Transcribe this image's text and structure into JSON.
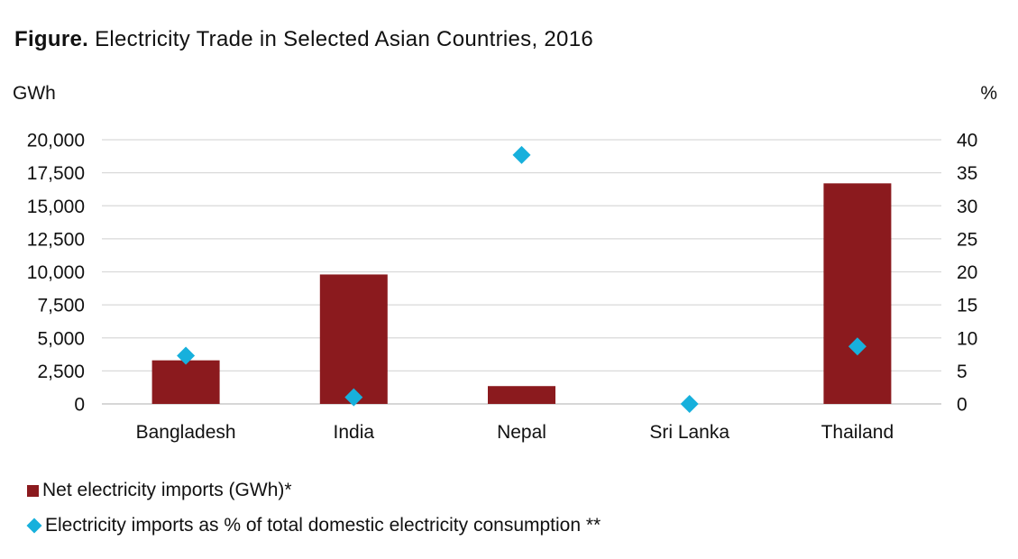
{
  "figure": {
    "prefix": "Figure.",
    "title": "Electricity Trade in Selected Asian Countries, 2016"
  },
  "colors": {
    "bar": "#8b1a1e",
    "marker": "#17b0dc",
    "grid": "#d9d9d9"
  },
  "chart_data": {
    "type": "bar",
    "categories": [
      "Bangladesh",
      "India",
      "Nepal",
      "Sri Lanka",
      "Thailand"
    ],
    "series": [
      {
        "name": "Net electricity imports (GWh)*",
        "type": "bar",
        "axis": "left",
        "values": [
          3300,
          9800,
          1350,
          0,
          16700
        ]
      },
      {
        "name": "Electricity imports as % of total domestic electricity consumption **",
        "type": "scatter",
        "axis": "right",
        "values": [
          7.3,
          1.0,
          37.7,
          0.0,
          8.7
        ]
      }
    ],
    "y_left": {
      "label": "GWh",
      "range": [
        0,
        20000
      ],
      "ticks": [
        "0",
        "2,500",
        "5,000",
        "7,500",
        "10,000",
        "12,500",
        "15,000",
        "17,500",
        "20,000"
      ]
    },
    "y_right": {
      "label": "%",
      "range": [
        0,
        40
      ],
      "ticks": [
        "0",
        "5",
        "10",
        "15",
        "20",
        "25",
        "30",
        "35",
        "40"
      ]
    },
    "grid": true,
    "legend": "bottom-left"
  }
}
